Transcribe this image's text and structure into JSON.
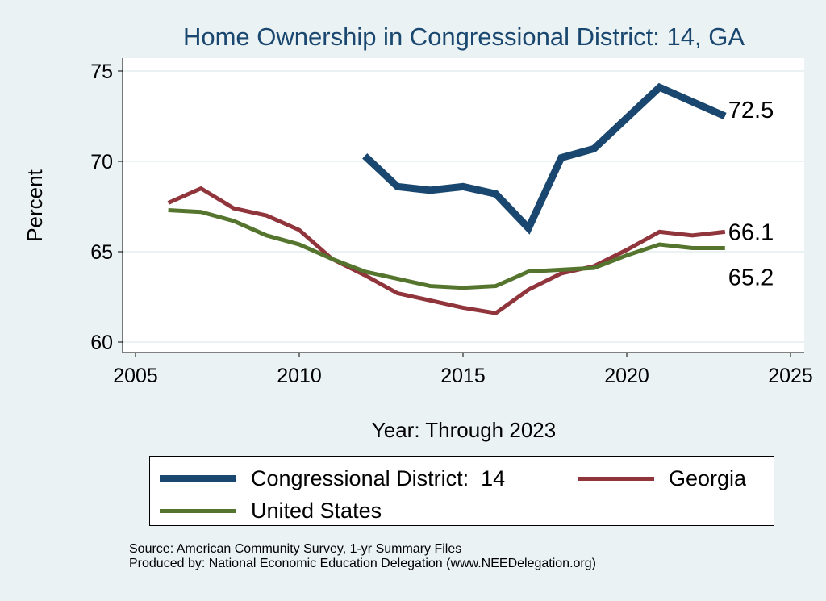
{
  "chart_data": {
    "type": "line",
    "title": "Home Ownership in Congressional District:  14, GA",
    "xlabel": "Year: Through 2023",
    "ylabel": "Percent",
    "xlim": [
      2005,
      2025
    ],
    "ylim": [
      60,
      75
    ],
    "xticks": [
      2005,
      2010,
      2015,
      2020,
      2025
    ],
    "yticks": [
      60,
      65,
      70,
      75
    ],
    "grid": true,
    "legend_position": "bottom",
    "series": [
      {
        "name": "Congressional District:  14",
        "color": "#1a476f",
        "x": [
          2012,
          2013,
          2014,
          2015,
          2016,
          2017,
          2018,
          2019,
          2020,
          2021,
          2022,
          2023
        ],
        "y": [
          70.3,
          68.6,
          68.4,
          68.6,
          68.2,
          66.3,
          70.2,
          70.7,
          72.4,
          74.1,
          73.3,
          72.5
        ],
        "end_label": "72.5"
      },
      {
        "name": "Georgia",
        "color": "#90353b",
        "x": [
          2006,
          2007,
          2008,
          2009,
          2010,
          2011,
          2012,
          2013,
          2014,
          2015,
          2016,
          2017,
          2018,
          2019,
          2020,
          2021,
          2022,
          2023
        ],
        "y": [
          67.7,
          68.5,
          67.4,
          67.0,
          66.2,
          64.6,
          63.7,
          62.7,
          62.3,
          61.9,
          61.6,
          62.9,
          63.8,
          64.2,
          65.1,
          66.1,
          65.9,
          66.1
        ],
        "end_label": "66.1"
      },
      {
        "name": "United States",
        "color": "#55752f",
        "x": [
          2006,
          2007,
          2008,
          2009,
          2010,
          2011,
          2012,
          2013,
          2014,
          2015,
          2016,
          2017,
          2018,
          2019,
          2020,
          2021,
          2022,
          2023
        ],
        "y": [
          67.3,
          67.2,
          66.7,
          65.9,
          65.4,
          64.6,
          63.9,
          63.5,
          63.1,
          63.0,
          63.1,
          63.9,
          64.0,
          64.1,
          64.8,
          65.4,
          65.2,
          65.2
        ],
        "end_label": "65.2"
      }
    ]
  },
  "source": {
    "line1": "Source: American Community Survey, 1-yr Summary Files",
    "line2": "Produced by: National Economic Education Delegation (www.NEEDelegation.org)"
  }
}
